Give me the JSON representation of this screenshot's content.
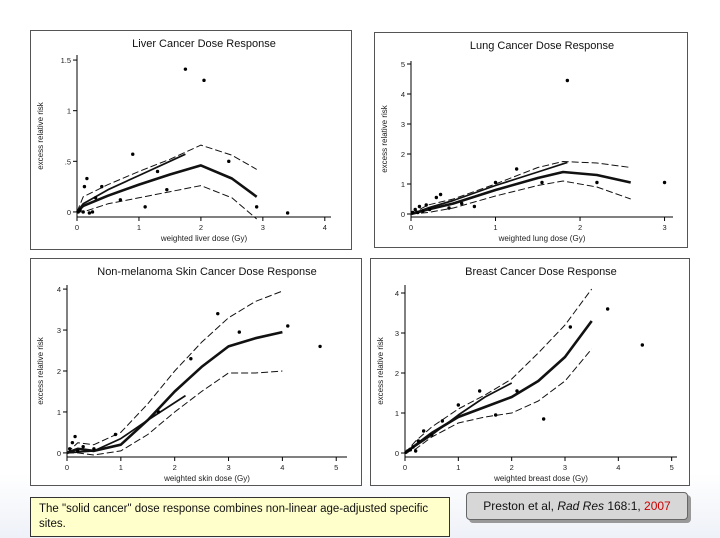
{
  "chart_data": [
    {
      "type": "line",
      "title": "Liver Cancer Dose Response",
      "xlabel": "weighted liver dose (Gy)",
      "ylabel": "excess relative risk",
      "xlim": [
        0,
        4.1
      ],
      "ylim": [
        -0.05,
        1.55
      ],
      "xticks": [
        0,
        1,
        2,
        3,
        4
      ],
      "xtick_labels": [
        "0",
        "1",
        "2",
        "3",
        "4"
      ],
      "yticks": [
        0,
        0.5,
        1,
        1.5
      ],
      "ytick_labels": [
        "0",
        ".5",
        "1",
        "1.5"
      ],
      "series": [
        {
          "x": [
            0,
            0.1,
            0.5,
            1.0,
            1.5,
            2.0,
            2.5,
            2.9
          ],
          "values": [
            0,
            0.06,
            0.16,
            0.27,
            0.37,
            0.46,
            0.33,
            0.15
          ],
          "style": "thick"
        },
        {
          "x": [
            0,
            0.1,
            0.5,
            1.0,
            1.5,
            2.0,
            2.5,
            2.9
          ],
          "values": [
            0,
            0.15,
            0.27,
            0.4,
            0.52,
            0.66,
            0.56,
            0.42
          ],
          "style": "dashed"
        },
        {
          "x": [
            0,
            0.1,
            0.5,
            1.0,
            1.5,
            2.0,
            2.5,
            2.9
          ],
          "values": [
            0,
            0.0,
            0.08,
            0.14,
            0.2,
            0.26,
            0.14,
            -0.07
          ],
          "style": "dashed"
        },
        {
          "x": [
            0,
            0.1,
            0.5,
            1.0,
            1.5,
            1.75
          ],
          "values": [
            0,
            0.08,
            0.22,
            0.36,
            0.5,
            0.57
          ],
          "style": "medium"
        }
      ],
      "points": [
        [
          0.02,
          0.0
        ],
        [
          0.05,
          0.02
        ],
        [
          0.1,
          0.0
        ],
        [
          0.12,
          0.25
        ],
        [
          0.16,
          0.33
        ],
        [
          0.2,
          -0.01
        ],
        [
          0.25,
          0.0
        ],
        [
          0.3,
          0.14
        ],
        [
          0.4,
          0.25
        ],
        [
          0.7,
          0.12
        ],
        [
          0.9,
          0.57
        ],
        [
          1.1,
          0.05
        ],
        [
          1.3,
          0.4
        ],
        [
          1.45,
          0.22
        ],
        [
          1.75,
          1.41
        ],
        [
          2.05,
          1.3
        ],
        [
          2.45,
          0.5
        ],
        [
          2.9,
          0.05
        ],
        [
          3.4,
          -0.01
        ]
      ]
    },
    {
      "type": "line",
      "title": "Lung Cancer Dose Response",
      "xlabel": "weighted lung dose (Gy)",
      "ylabel": "excess relative risk",
      "xlim": [
        0,
        3.1
      ],
      "ylim": [
        -0.1,
        5.1
      ],
      "xticks": [
        0,
        1,
        2,
        3
      ],
      "xtick_labels": [
        "0",
        "1",
        "2",
        "3"
      ],
      "yticks": [
        0,
        1,
        2,
        3,
        4,
        5
      ],
      "ytick_labels": [
        "0",
        "1",
        "2",
        "3",
        "4",
        "5"
      ],
      "series": [
        {
          "x": [
            0,
            0.2,
            0.5,
            1.0,
            1.5,
            1.8,
            2.2,
            2.6
          ],
          "values": [
            0,
            0.15,
            0.35,
            0.8,
            1.2,
            1.4,
            1.3,
            1.05
          ],
          "style": "thick"
        },
        {
          "x": [
            0,
            0.2,
            0.5,
            1.0,
            1.5,
            1.8,
            2.2,
            2.6
          ],
          "values": [
            0,
            0.3,
            0.5,
            1.0,
            1.55,
            1.75,
            1.7,
            1.55
          ],
          "style": "dashed"
        },
        {
          "x": [
            0,
            0.2,
            0.5,
            1.0,
            1.5,
            1.8,
            2.2,
            2.6
          ],
          "values": [
            0,
            0.05,
            0.2,
            0.6,
            0.95,
            1.1,
            0.9,
            0.5
          ],
          "style": "dashed"
        },
        {
          "x": [
            0,
            0.2,
            0.5,
            1.0,
            1.5,
            1.85
          ],
          "values": [
            0,
            0.2,
            0.45,
            0.95,
            1.4,
            1.72
          ],
          "style": "medium"
        }
      ],
      "points": [
        [
          0.02,
          0.05
        ],
        [
          0.05,
          0.15
        ],
        [
          0.08,
          0.05
        ],
        [
          0.1,
          0.25
        ],
        [
          0.14,
          0.1
        ],
        [
          0.18,
          0.3
        ],
        [
          0.22,
          0.15
        ],
        [
          0.3,
          0.55
        ],
        [
          0.35,
          0.65
        ],
        [
          0.45,
          0.2
        ],
        [
          0.6,
          0.35
        ],
        [
          0.75,
          0.25
        ],
        [
          1.0,
          1.05
        ],
        [
          1.25,
          1.5
        ],
        [
          1.55,
          1.05
        ],
        [
          1.85,
          4.45
        ],
        [
          2.2,
          1.05
        ],
        [
          3.0,
          1.05
        ]
      ]
    },
    {
      "type": "line",
      "title": "Non-melanoma Skin Cancer Dose Response",
      "xlabel": "weighted skin dose (Gy)",
      "ylabel": "excess relative risk",
      "xlim": [
        0,
        5.2
      ],
      "ylim": [
        -0.1,
        4.1
      ],
      "xticks": [
        0,
        1,
        2,
        3,
        4,
        5
      ],
      "xtick_labels": [
        "0",
        "1",
        "2",
        "3",
        "4",
        "5"
      ],
      "yticks": [
        0,
        1,
        2,
        3,
        4
      ],
      "ytick_labels": [
        "0",
        "1",
        "2",
        "3",
        "4"
      ],
      "series": [
        {
          "x": [
            0,
            0.2,
            0.5,
            1.0,
            1.5,
            2.0,
            2.5,
            3.0,
            3.5,
            4.0
          ],
          "values": [
            0,
            0.1,
            0.05,
            0.2,
            0.8,
            1.5,
            2.1,
            2.6,
            2.8,
            2.95
          ],
          "style": "thick"
        },
        {
          "x": [
            0,
            0.2,
            0.5,
            1.0,
            1.5,
            2.0,
            2.5,
            3.0,
            3.5,
            4.0
          ],
          "values": [
            0,
            0.25,
            0.2,
            0.5,
            1.2,
            2.0,
            2.7,
            3.3,
            3.7,
            3.95
          ],
          "style": "dashed"
        },
        {
          "x": [
            0,
            0.2,
            0.5,
            1.0,
            1.5,
            2.0,
            2.5,
            3.0,
            3.5,
            4.0
          ],
          "values": [
            0,
            0.0,
            -0.05,
            0.05,
            0.45,
            1.0,
            1.5,
            1.95,
            1.95,
            2.0
          ],
          "style": "dashed"
        },
        {
          "x": [
            0,
            0.5,
            1.0,
            1.5,
            2.2
          ],
          "values": [
            0,
            0.05,
            0.35,
            0.8,
            1.4
          ],
          "style": "medium"
        }
      ],
      "points": [
        [
          0.05,
          0.1
        ],
        [
          0.1,
          0.25
        ],
        [
          0.15,
          0.4
        ],
        [
          0.2,
          0.05
        ],
        [
          0.3,
          0.15
        ],
        [
          0.5,
          0.1
        ],
        [
          0.9,
          0.45
        ],
        [
          1.7,
          1.0
        ],
        [
          2.3,
          2.3
        ],
        [
          2.8,
          3.4
        ],
        [
          3.2,
          2.95
        ],
        [
          4.1,
          3.1
        ],
        [
          4.7,
          2.6
        ]
      ]
    },
    {
      "type": "line",
      "title": "Breast Cancer Dose Response",
      "xlabel": "weighted breast dose (Gy)",
      "ylabel": "excess relative risk",
      "xlim": [
        0,
        5.1
      ],
      "ylim": [
        -0.1,
        4.2
      ],
      "xticks": [
        0,
        1,
        2,
        3,
        4,
        5
      ],
      "xtick_labels": [
        "0",
        "1",
        "2",
        "3",
        "4",
        "5"
      ],
      "yticks": [
        0,
        1,
        2,
        3,
        4
      ],
      "ytick_labels": [
        "0",
        "1",
        "2",
        "3",
        "4"
      ],
      "series": [
        {
          "x": [
            0,
            0.2,
            0.5,
            1.0,
            1.5,
            2.0,
            2.5,
            3.0,
            3.5
          ],
          "values": [
            0,
            0.2,
            0.5,
            0.9,
            1.15,
            1.4,
            1.8,
            2.4,
            3.3
          ],
          "style": "thick"
        },
        {
          "x": [
            0,
            0.2,
            0.5,
            1.0,
            1.5,
            2.0,
            2.5,
            3.0,
            3.5
          ],
          "values": [
            0,
            0.3,
            0.65,
            1.1,
            1.45,
            1.85,
            2.5,
            3.2,
            4.1
          ],
          "style": "dashed"
        },
        {
          "x": [
            0,
            0.2,
            0.5,
            1.0,
            1.5,
            2.0,
            2.5,
            3.0,
            3.5
          ],
          "values": [
            0,
            0.1,
            0.4,
            0.75,
            0.9,
            1.0,
            1.3,
            1.8,
            2.6
          ],
          "style": "dashed"
        },
        {
          "x": [
            0,
            0.5,
            1.0,
            1.5,
            2.0
          ],
          "values": [
            0,
            0.45,
            0.95,
            1.4,
            1.75
          ],
          "style": "medium"
        }
      ],
      "points": [
        [
          0.02,
          0.02
        ],
        [
          0.05,
          0.05
        ],
        [
          0.1,
          0.08
        ],
        [
          0.15,
          0.15
        ],
        [
          0.2,
          0.05
        ],
        [
          0.25,
          0.3
        ],
        [
          0.35,
          0.55
        ],
        [
          0.5,
          0.45
        ],
        [
          0.7,
          0.8
        ],
        [
          1.0,
          1.2
        ],
        [
          1.4,
          1.55
        ],
        [
          1.7,
          0.95
        ],
        [
          2.1,
          1.55
        ],
        [
          2.6,
          0.85
        ],
        [
          3.1,
          3.15
        ],
        [
          3.8,
          3.6
        ],
        [
          4.45,
          2.7
        ]
      ]
    }
  ],
  "note": {
    "text": "The \"solid cancer\" dose response combines non-linear age-adjusted specific sites."
  },
  "citation": {
    "prefix": "Preston et al, ",
    "journal": "Rad Res",
    "volume": " 168:1, ",
    "year": "2007"
  }
}
